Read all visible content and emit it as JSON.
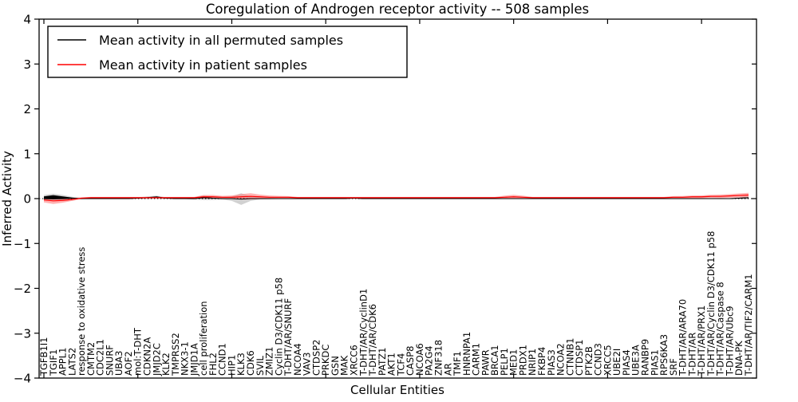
{
  "figure": {
    "title": "Coregulation of Androgen receptor activity -- 508 samples",
    "background": "#ffffff"
  },
  "legend": {
    "position": "upper left",
    "entries": [
      {
        "label": "Mean activity in all permuted samples",
        "color": "#000000"
      },
      {
        "label": "Mean activity in patient samples",
        "color": "#ff0000"
      }
    ]
  },
  "chart_data": {
    "type": "line",
    "title": "Coregulation of Androgen receptor activity -- 508 samples",
    "xlabel": "Cellular Entities",
    "ylabel": "Inferred Activity",
    "ylim": [
      -4,
      4
    ],
    "yticks": [
      4,
      3,
      2,
      1,
      0,
      -1,
      -2,
      -3,
      -4
    ],
    "grid": false,
    "zero_line_style": "dotted",
    "legend_position": "upper left",
    "categories": [
      "TGFB1I1",
      "TGIF1",
      "APPL1",
      "LATS2",
      "response to oxidative stress",
      "CMTM2",
      "CDC2L1",
      "SNURF",
      "UBA3",
      "AOF2",
      "mol:T-DHT",
      "CDKN2A",
      "JMJD2C",
      "KLK2",
      "TMPRSS2",
      "NKX3-1",
      "JMJD1A",
      "cell proliferation",
      "FHL2",
      "CCND1",
      "HIP1",
      "KLK3",
      "CDK6",
      "SVIL",
      "ZMIZ1",
      "Cyclin D3/CDK11 p58",
      "T-DHT/AR/SNURF",
      "NCOA4",
      "VAV3",
      "CTDSP2",
      "PRKDC",
      "GSN",
      "MAK",
      "XRCC6",
      "T-DHT/AR/CyclinD1",
      "T-DHT/AR/CDK6",
      "PATZ1",
      "AKT1",
      "TCF4",
      "CASP8",
      "NCOA6",
      "PA2G4",
      "ZNF318",
      "AR",
      "TMF1",
      "HNRNPA1",
      "CARM1",
      "PAWR",
      "BRCA1",
      "PELP1",
      "MED1",
      "PRDX1",
      "NRIP1",
      "FKBP4",
      "PIAS3",
      "NCOA2",
      "CTNNB1",
      "CTDSP1",
      "PTK2B",
      "CCND3",
      "XRCC5",
      "UBE2I",
      "PIAS4",
      "UBE3A",
      "RANBP9",
      "PIAS1",
      "RPS6KA3",
      "SRF",
      "T-DHT/AR/ARA70",
      "T-DHT/AR",
      "T-DHT/AR/PRX1",
      "T-DHT/AR/Cyclin D3/CDK11 p58",
      "T-DHT/AR/Caspase 8",
      "T-DHT/AR/Ubc9",
      "DNA-PK",
      "T-DHT/AR/TIF2/CARM1"
    ],
    "series": [
      {
        "name": "Mean activity in all permuted samples",
        "color": "#000000",
        "band_color": "#c9c9c9",
        "values": [
          0.02,
          0.03,
          0.02,
          0.01,
          0,
          0,
          0,
          0,
          0,
          0,
          0.01,
          0.02,
          0.03,
          0.01,
          0,
          0,
          0,
          0.02,
          0.01,
          0,
          0,
          -0.01,
          0,
          0,
          0,
          0,
          0,
          0,
          0,
          0,
          0,
          0,
          0,
          0.01,
          0,
          0,
          0,
          0,
          0,
          0,
          0,
          0,
          0,
          0,
          0,
          0,
          0,
          0,
          0,
          0,
          0,
          0,
          0,
          0,
          0,
          0,
          0,
          0,
          0,
          0,
          0,
          0,
          0,
          0,
          0,
          0,
          0,
          0,
          0,
          0,
          0,
          0,
          0,
          0,
          0.01,
          0.02
        ],
        "line_band": [
          0.03,
          0.045,
          0.03,
          0.012,
          0.005,
          0.005,
          0.005,
          0.005,
          0.005,
          0.005,
          0.008,
          0.012,
          0.018,
          0.008,
          0.005,
          0.005,
          0.005,
          0.012,
          0.008,
          0.005,
          0.005,
          0.005,
          0.005,
          0.005,
          0.005,
          0.005,
          0.005,
          0.005,
          0.005,
          0.005,
          0.005,
          0.005,
          0.005,
          0.008,
          0.005,
          0.005,
          0.005,
          0.005,
          0.005,
          0.005,
          0.005,
          0.005,
          0.005,
          0.005,
          0.005,
          0.005,
          0.005,
          0.005,
          0.005,
          0.005,
          0.005,
          0.005,
          0.005,
          0.005,
          0.005,
          0.005,
          0.005,
          0.005,
          0.005,
          0.005,
          0.005,
          0.005,
          0.005,
          0.005,
          0.005,
          0.005,
          0.005,
          0.005,
          0.005,
          0.005,
          0.005,
          0.005,
          0.005,
          0.005,
          0.008,
          0.01
        ],
        "band": [
          0.06,
          0.08,
          0.06,
          0.03,
          0.015,
          0.012,
          0.012,
          0.012,
          0.012,
          0.012,
          0.02,
          0.03,
          0.035,
          0.02,
          0.012,
          0.012,
          0.025,
          0.05,
          0.04,
          0.02,
          0.05,
          0.13,
          0.05,
          0.02,
          0.015,
          0.012,
          0.012,
          0.012,
          0.012,
          0.012,
          0.012,
          0.012,
          0.012,
          0.02,
          0.012,
          0.012,
          0.012,
          0.012,
          0.012,
          0.012,
          0.012,
          0.012,
          0.012,
          0.012,
          0.012,
          0.012,
          0.012,
          0.012,
          0.012,
          0.012,
          0.012,
          0.012,
          0.012,
          0.012,
          0.012,
          0.012,
          0.012,
          0.012,
          0.012,
          0.012,
          0.012,
          0.012,
          0.012,
          0.012,
          0.012,
          0.012,
          0.012,
          0.012,
          0.012,
          0.012,
          0.012,
          0.012,
          0.012,
          0.012,
          0.025,
          0.035
        ]
      },
      {
        "name": "Mean activity in patient samples",
        "color": "#ff0000",
        "band_color": "#ff8080",
        "values": [
          -0.03,
          -0.05,
          -0.04,
          -0.02,
          0.01,
          0.02,
          0.02,
          0.02,
          0.02,
          0.02,
          0.02,
          0.02,
          0.02,
          0.02,
          0.02,
          0.02,
          0.02,
          0.04,
          0.04,
          0.03,
          0.03,
          0.04,
          0.05,
          0.04,
          0.03,
          0.03,
          0.03,
          0.02,
          0.02,
          0.02,
          0.02,
          0.02,
          0.02,
          0.02,
          0.02,
          0.02,
          0.02,
          0.02,
          0.02,
          0.02,
          0.02,
          0.02,
          0.02,
          0.02,
          0.02,
          0.02,
          0.02,
          0.02,
          0.02,
          0.03,
          0.04,
          0.03,
          0.02,
          0.02,
          0.02,
          0.02,
          0.02,
          0.02,
          0.02,
          0.02,
          0.02,
          0.02,
          0.02,
          0.02,
          0.02,
          0.02,
          0.02,
          0.03,
          0.03,
          0.04,
          0.04,
          0.05,
          0.05,
          0.06,
          0.07,
          0.08
        ],
        "band": [
          0.055,
          0.07,
          0.05,
          0.03,
          0.02,
          0.018,
          0.018,
          0.018,
          0.018,
          0.018,
          0.018,
          0.018,
          0.018,
          0.018,
          0.018,
          0.018,
          0.018,
          0.04,
          0.04,
          0.03,
          0.04,
          0.06,
          0.07,
          0.05,
          0.04,
          0.03,
          0.025,
          0.018,
          0.018,
          0.018,
          0.018,
          0.018,
          0.018,
          0.018,
          0.018,
          0.018,
          0.018,
          0.018,
          0.018,
          0.018,
          0.018,
          0.018,
          0.018,
          0.018,
          0.018,
          0.018,
          0.018,
          0.018,
          0.018,
          0.035,
          0.045,
          0.035,
          0.018,
          0.018,
          0.018,
          0.018,
          0.018,
          0.018,
          0.018,
          0.018,
          0.018,
          0.018,
          0.018,
          0.018,
          0.018,
          0.018,
          0.018,
          0.025,
          0.028,
          0.03,
          0.032,
          0.035,
          0.038,
          0.04,
          0.045,
          0.05
        ]
      }
    ]
  }
}
